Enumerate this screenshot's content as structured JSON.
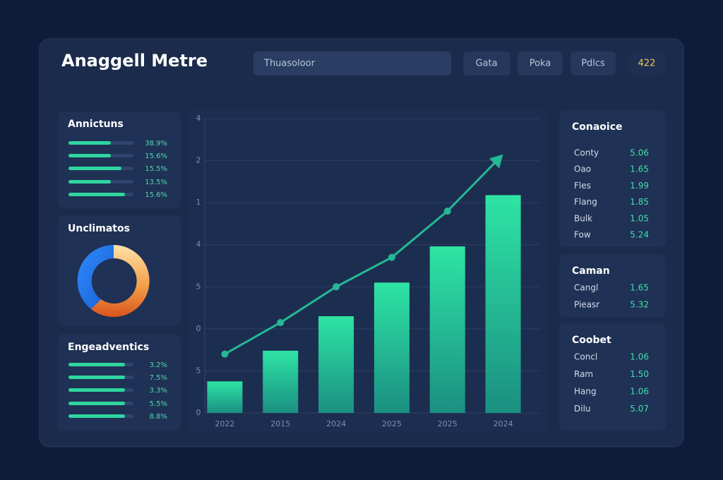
{
  "header": {
    "title": "Anaggell Metre",
    "search_placeholder": "Thuasoloor",
    "buttons": [
      "Gata",
      "Poka",
      "Pdlcs"
    ],
    "badge": "422"
  },
  "left_panels": [
    {
      "title": "Annictuns",
      "rows": [
        "38.9%",
        "15.6%",
        "15.5%",
        "13.5%",
        "15.6%"
      ]
    },
    {
      "title": "Unclimatos"
    },
    {
      "title": "Engeadventics",
      "rows": [
        "3.2%",
        "7.5%",
        "3.3%",
        "5.5%",
        "8.8%"
      ]
    }
  ],
  "chart_data": {
    "type": "bar",
    "categories": [
      "2022",
      "2015",
      "2024",
      "2025",
      "2025",
      "2024"
    ],
    "series": [
      {
        "type": "bar",
        "color": "#2ad69c",
        "values": [
          0.75,
          1.48,
          2.3,
          3.1,
          3.96,
          5.18
        ]
      },
      {
        "type": "line",
        "color": "#25b896",
        "values": [
          1.4,
          2.15,
          3.0,
          3.7,
          4.8,
          6.15
        ]
      }
    ],
    "ylim": [
      0,
      7
    ],
    "yticks": [
      0,
      {
        "value": 1,
        "label": "5"
      },
      {
        "value": 2,
        "label": "0"
      },
      {
        "value": 3,
        "label": "5"
      },
      4,
      {
        "value": 5,
        "label": "1"
      },
      {
        "value": 6,
        "label": "2"
      },
      {
        "value": 7,
        "label": "4"
      }
    ],
    "grid": true
  },
  "right_panels": [
    {
      "title": "Conaoice",
      "rows": [
        [
          "Conty",
          "5.06"
        ],
        [
          "Oao",
          "1.65"
        ],
        [
          "Fles",
          "1.99"
        ],
        [
          "Flang",
          "1.85"
        ],
        [
          "Bulk",
          "1.05"
        ],
        [
          "Fow",
          "5.24"
        ]
      ]
    },
    {
      "title": "Caman",
      "rows": [
        [
          "Cangl",
          "1.65"
        ],
        [
          "Pieasr",
          "5.32"
        ]
      ]
    },
    {
      "title": "Coobet",
      "rows": [
        [
          "Concl",
          "1.06"
        ],
        [
          "Ram",
          "1.50"
        ],
        [
          "Hang",
          "1.06"
        ],
        [
          "Dilu",
          "5.07"
        ]
      ]
    }
  ]
}
